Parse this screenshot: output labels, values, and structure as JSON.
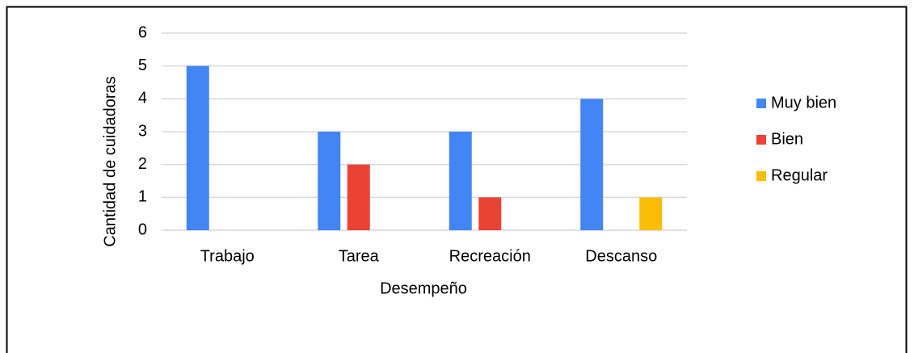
{
  "chart_data": {
    "type": "bar",
    "categories": [
      "Trabajo",
      "Tarea",
      "Recreación",
      "Descanso"
    ],
    "series": [
      {
        "name": "Muy bien",
        "color": "#4285f4",
        "values": [
          5,
          3,
          3,
          4
        ]
      },
      {
        "name": "Bien",
        "color": "#ea4335",
        "values": [
          0,
          2,
          1,
          0
        ]
      },
      {
        "name": "Regular",
        "color": "#fbbc04",
        "values": [
          0,
          0,
          0,
          1
        ]
      }
    ],
    "xlabel": "Desempeño",
    "ylabel": "Cantidad de cuidadoras",
    "ylim": [
      0,
      6
    ],
    "yticks": [
      0,
      1,
      2,
      3,
      4,
      5,
      6
    ],
    "grid": true,
    "legend": "right"
  }
}
